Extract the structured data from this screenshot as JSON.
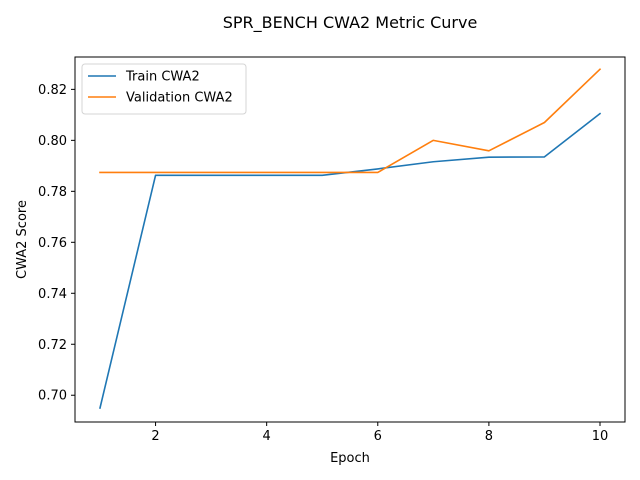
{
  "chart_data": {
    "type": "line",
    "title": "SPR_BENCH CWA2 Metric Curve",
    "xlabel": "Epoch",
    "ylabel": "CWA2 Score",
    "xlim": [
      0.55,
      10.45
    ],
    "ylim": [
      0.6895,
      0.8327
    ],
    "x": [
      1,
      2,
      3,
      4,
      5,
      6,
      7,
      8,
      9,
      10
    ],
    "xticks": [
      2,
      4,
      6,
      8,
      10
    ],
    "yticks": [
      0.7,
      0.72,
      0.74,
      0.76,
      0.78,
      0.8,
      0.82
    ],
    "ytick_labels": [
      "0.70",
      "0.72",
      "0.74",
      "0.76",
      "0.78",
      "0.80",
      "0.82"
    ],
    "grid": false,
    "legend_position": "upper-left",
    "series": [
      {
        "name": "Train CWA2",
        "color": "#1f77b4",
        "values": [
          0.695,
          0.7863,
          0.7863,
          0.7863,
          0.7863,
          0.7888,
          0.7916,
          0.7934,
          0.7935,
          0.8105
        ]
      },
      {
        "name": "Validation CWA2",
        "color": "#ff7f0e",
        "values": [
          0.7874,
          0.7874,
          0.7874,
          0.7874,
          0.7874,
          0.7874,
          0.8,
          0.7959,
          0.807,
          0.8279
        ]
      }
    ]
  }
}
